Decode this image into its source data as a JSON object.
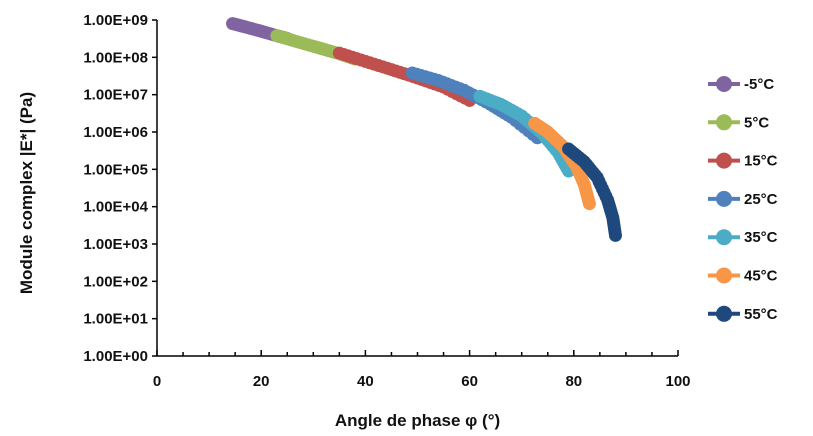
{
  "chart_data": {
    "type": "scatter",
    "title": "",
    "xlabel": "Angle de phase  φ (°)",
    "ylabel": "Module complex |E*| (Pa)",
    "xlim": [
      0,
      100
    ],
    "ylim_log10": [
      0,
      9
    ],
    "y_scale": "log",
    "x_ticks": [
      "0",
      "20",
      "40",
      "60",
      "80",
      "100"
    ],
    "y_ticks": [
      "1.00E+00",
      "1.00E+01",
      "1.00E+02",
      "1.00E+03",
      "1.00E+04",
      "1.00E+05",
      "1.00E+06",
      "1.00E+07",
      "1.00E+08",
      "1.00E+09"
    ],
    "grid": false,
    "legend_position": "right",
    "series": [
      {
        "name": "-5°C",
        "color": "#8064A2",
        "points": [
          [
            14.5,
            800000000.0
          ],
          [
            17,
            650000000.0
          ],
          [
            20,
            500000000.0
          ],
          [
            23,
            380000000.0
          ],
          [
            25,
            320000000.0
          ]
        ]
      },
      {
        "name": "5°C",
        "color": "#9BBB59",
        "points": [
          [
            23,
            380000000.0
          ],
          [
            27,
            260000000.0
          ],
          [
            31,
            180000000.0
          ],
          [
            35,
            125000000.0
          ],
          [
            38,
            90000000.0
          ]
        ]
      },
      {
        "name": "15°C",
        "color": "#C0504D",
        "points": [
          [
            35,
            130000000.0
          ],
          [
            40,
            78000000.0
          ],
          [
            45,
            47000000.0
          ],
          [
            50,
            28000000.0
          ],
          [
            55,
            16000000.0
          ],
          [
            60,
            7000000.0
          ]
        ]
      },
      {
        "name": "25°C",
        "color": "#4F81BD",
        "points": [
          [
            49,
            38000000.0
          ],
          [
            54,
            24000000.0
          ],
          [
            59,
            13000000.0
          ],
          [
            64,
            5500000.0
          ],
          [
            68,
            2500000.0
          ],
          [
            73,
            700000.0
          ]
        ]
      },
      {
        "name": "35°C",
        "color": "#4BACC6",
        "points": [
          [
            62,
            9000000.0
          ],
          [
            66,
            5500000.0
          ],
          [
            70,
            2700000.0
          ],
          [
            74,
            900000.0
          ],
          [
            77,
            280000.0
          ],
          [
            79,
            90000.0
          ]
        ]
      },
      {
        "name": "45°C",
        "color": "#F79646",
        "points": [
          [
            72.5,
            1700000.0
          ],
          [
            75,
            1000000.0
          ],
          [
            78,
            400000.0
          ],
          [
            80.5,
            120000.0
          ],
          [
            82,
            40000.0
          ],
          [
            83,
            12000.0
          ]
        ]
      },
      {
        "name": "55°C",
        "color": "#1F497D",
        "points": [
          [
            79,
            350000.0
          ],
          [
            82,
            160000.0
          ],
          [
            84.5,
            60000.0
          ],
          [
            86.5,
            15000.0
          ],
          [
            87.5,
            5000.0
          ],
          [
            88,
            1700.0
          ]
        ]
      }
    ]
  }
}
